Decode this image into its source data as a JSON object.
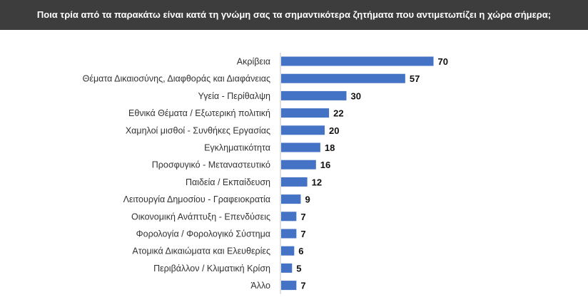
{
  "header": {
    "question": "Ποια τρία από τα παρακάτω είναι κατά τη γνώμη σας τα σημαντικότερα ζητήματα που αντιμετωπίζει η χώρα σήμερα;"
  },
  "colors": {
    "bar": "#4472c4",
    "header_bg": "#3d3d3d",
    "header_text": "#ffffff",
    "label_text": "#333333",
    "value_text": "#111111"
  },
  "chart_data": {
    "type": "bar",
    "orientation": "horizontal",
    "categories": [
      "Ακρίβεια",
      "Θέματα Δικαιοσύνης, Διαφθοράς και Διαφάνειας",
      "Υγεία - Περίθαλψη",
      "Εθνικά Θέματα / Εξωτερική πολιτική",
      "Χαμηλοί μισθοί - Συνθήκες Εργασίας",
      "Εγκληματικότητα",
      "Προσφυγικό - Μεταναστευτικό",
      "Παιδεία / Εκπαίδευση",
      "Λειτουργία Δημοσίου - Γραφειοκρατία",
      "Οικονομική Ανάπτυξη - Επενδύσεις",
      "Φορολογία / Φορολογικό Σύστημα",
      "Ατομικά Δικαιώματα και Ελευθερίες",
      "Περιβάλλον / Κλιματική Κρίση",
      "Άλλο"
    ],
    "values": [
      70,
      57,
      30,
      22,
      20,
      18,
      16,
      12,
      9,
      7,
      7,
      6,
      5,
      7
    ],
    "title": "",
    "xlabel": "",
    "ylabel": "",
    "grid": false,
    "legend": "none",
    "data_labels": true
  }
}
